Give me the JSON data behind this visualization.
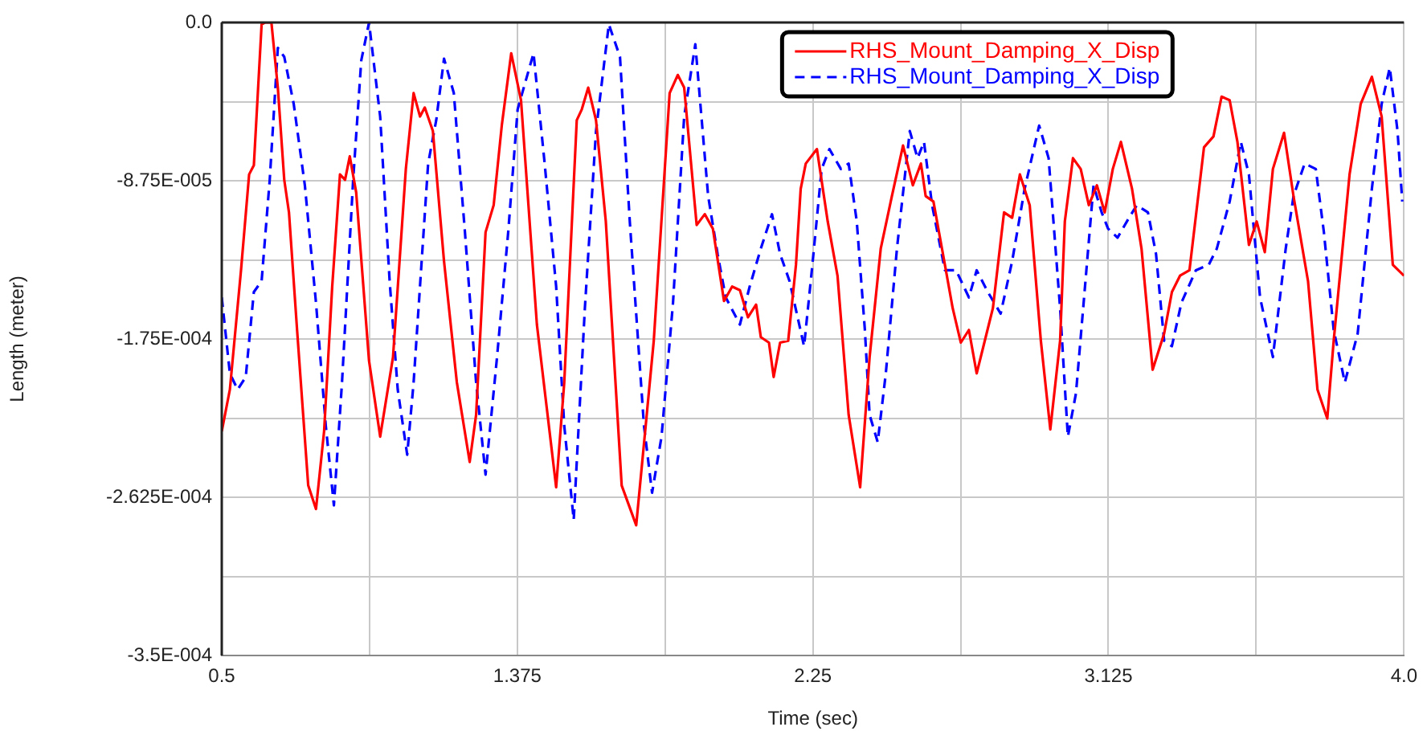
{
  "chart_data": {
    "type": "line",
    "xlabel": "Time (sec)",
    "ylabel": "Length (meter)",
    "xlim": [
      0.5,
      4.0
    ],
    "ylim": [
      -0.00035,
      0
    ],
    "xticks": [
      0.5,
      {
        "value": 0.9375,
        "label": null
      },
      1.375,
      {
        "value": 1.8125,
        "label": null
      },
      2.25,
      {
        "value": 2.6875,
        "label": null
      },
      3.125,
      {
        "value": 3.5625,
        "label": null
      },
      {
        "value": 4,
        "label": "4.0"
      }
    ],
    "yticks": [
      {
        "value": -0.00035,
        "label": "-3.5E-004"
      },
      {
        "value": -0.00030625,
        "label": null
      },
      {
        "value": -0.0002625,
        "label": "-2.625E-004"
      },
      {
        "value": -0.00021875,
        "label": null
      },
      {
        "value": -0.000175,
        "label": "-1.75E-004"
      },
      {
        "value": -0.00013125,
        "label": null
      },
      {
        "value": -8.75e-05,
        "label": "-8.75E-005"
      },
      {
        "value": -4.375e-05,
        "label": null
      },
      {
        "value": 0,
        "label": "0.0"
      }
    ],
    "grid": true,
    "legend": "top right",
    "series": [
      {
        "name": "RHS_Mount_Damping_X_Disp",
        "color": "#ff0000",
        "line_style": "solid",
        "x": [
          0.5,
          0.524,
          0.557,
          0.581,
          0.595,
          0.618,
          0.628,
          0.647,
          0.666,
          0.685,
          0.699,
          0.723,
          0.756,
          0.779,
          0.803,
          0.827,
          0.85,
          0.865,
          0.879,
          0.898,
          0.936,
          0.969,
          1.007,
          1.045,
          1.068,
          1.087,
          1.101,
          1.125,
          1.158,
          1.196,
          1.234,
          1.253,
          1.281,
          1.305,
          1.329,
          1.357,
          1.386,
          1.433,
          1.49,
          1.514,
          1.551,
          1.566,
          1.585,
          1.608,
          1.637,
          1.684,
          1.727,
          1.779,
          1.826,
          1.85,
          1.869,
          1.906,
          1.93,
          1.954,
          1.987,
          2.011,
          2.034,
          2.058,
          2.082,
          2.096,
          2.12,
          2.134,
          2.153,
          2.177,
          2.2,
          2.214,
          2.229,
          2.262,
          2.294,
          2.323,
          2.356,
          2.39,
          2.418,
          2.451,
          2.484,
          2.517,
          2.546,
          2.57,
          2.584,
          2.607,
          2.641,
          2.664,
          2.688,
          2.712,
          2.735,
          2.759,
          2.783,
          2.816,
          2.84,
          2.863,
          2.892,
          2.925,
          2.953,
          2.982,
          2.996,
          3.02,
          3.043,
          3.067,
          3.091,
          3.114,
          3.138,
          3.162,
          3.195,
          3.223,
          3.256,
          3.29,
          3.313,
          3.337,
          3.365,
          3.408,
          3.436,
          3.46,
          3.484,
          3.507,
          3.541,
          3.564,
          3.588,
          3.612,
          3.645,
          3.673,
          3.716,
          3.744,
          3.773,
          3.792,
          3.839,
          3.872,
          3.905,
          3.934,
          3.967,
          4.0
        ],
        "values": [
          -0.000226,
          -0.000203,
          -0.000137,
          -8.4e-05,
          -7.9e-05,
          -1e-06,
          0,
          0,
          -3.6e-05,
          -8.7e-05,
          -0.000105,
          -0.00017,
          -0.000256,
          -0.000269,
          -0.000226,
          -0.000146,
          -8.4e-05,
          -8.7e-05,
          -7.4e-05,
          -9.4e-05,
          -0.000187,
          -0.000229,
          -0.000185,
          -8.1e-05,
          -3.9e-05,
          -5.2e-05,
          -4.7e-05,
          -6e-05,
          -0.000132,
          -0.000199,
          -0.000243,
          -0.000217,
          -0.000116,
          -0.000101,
          -5.7e-05,
          -1.7e-05,
          -4.3e-05,
          -0.000167,
          -0.000257,
          -0.000199,
          -5.4e-05,
          -4.8e-05,
          -3.6e-05,
          -5.4e-05,
          -0.00011,
          -0.000256,
          -0.000278,
          -0.000176,
          -3.9e-05,
          -2.9e-05,
          -3.6e-05,
          -0.000112,
          -0.000106,
          -0.000114,
          -0.000154,
          -0.000146,
          -0.000148,
          -0.000163,
          -0.000156,
          -0.000174,
          -0.000177,
          -0.000196,
          -0.000177,
          -0.000176,
          -0.000134,
          -9.2e-05,
          -7.8e-05,
          -7e-05,
          -0.00011,
          -0.00014,
          -0.000217,
          -0.000257,
          -0.000185,
          -0.000125,
          -9.6e-05,
          -6.8e-05,
          -9e-05,
          -7.8e-05,
          -9.6e-05,
          -9.9e-05,
          -0.000134,
          -0.000158,
          -0.000177,
          -0.00017,
          -0.000194,
          -0.000176,
          -0.000158,
          -0.000105,
          -0.000108,
          -8.4e-05,
          -0.000101,
          -0.000176,
          -0.000225,
          -0.000176,
          -0.00011,
          -7.5e-05,
          -8.1e-05,
          -0.000101,
          -9e-05,
          -0.000105,
          -8.1e-05,
          -6.6e-05,
          -9.2e-05,
          -0.000125,
          -0.000192,
          -0.000172,
          -0.000149,
          -0.00014,
          -0.000137,
          -6.9e-05,
          -6.3e-05,
          -4.1e-05,
          -4.3e-05,
          -6.6e-05,
          -0.000123,
          -0.00011,
          -0.000127,
          -8.1e-05,
          -6.1e-05,
          -9.6e-05,
          -0.000143,
          -0.000203,
          -0.000219,
          -0.000176,
          -8.4e-05,
          -4.5e-05,
          -3e-05,
          -5.2e-05,
          -0.000134,
          -0.00014
        ]
      },
      {
        "name": "RHS_Mount_Damping_X_Disp",
        "color": "#0000ff",
        "line_style": "dashed",
        "x": [
          0.5,
          0.524,
          0.547,
          0.571,
          0.595,
          0.618,
          0.642,
          0.666,
          0.685,
          0.713,
          0.746,
          0.779,
          0.808,
          0.832,
          0.856,
          0.889,
          0.913,
          0.936,
          0.969,
          0.997,
          1.021,
          1.049,
          1.068,
          1.111,
          1.135,
          1.158,
          1.187,
          1.22,
          1.253,
          1.281,
          1.315,
          1.348,
          1.376,
          1.423,
          1.456,
          1.49,
          1.514,
          1.542,
          1.575,
          1.608,
          1.646,
          1.679,
          1.708,
          1.75,
          1.774,
          1.802,
          1.836,
          1.869,
          1.902,
          1.94,
          1.968,
          1.992,
          2.034,
          2.063,
          2.096,
          2.129,
          2.153,
          2.181,
          2.224,
          2.247,
          2.276,
          2.299,
          2.333,
          2.356,
          2.38,
          2.404,
          2.418,
          2.442,
          2.466,
          2.499,
          2.537,
          2.56,
          2.579,
          2.603,
          2.641,
          2.674,
          2.712,
          2.735,
          2.768,
          2.806,
          2.84,
          2.877,
          2.92,
          2.948,
          2.982,
          3.005,
          3.029,
          3.053,
          3.081,
          3.105,
          3.124,
          3.152,
          3.186,
          3.209,
          3.242,
          3.266,
          3.29,
          3.313,
          3.341,
          3.384,
          3.422,
          3.446,
          3.484,
          3.517,
          3.541,
          3.574,
          3.612,
          3.65,
          3.673,
          3.706,
          3.739,
          3.763,
          3.792,
          3.825,
          3.863,
          3.905,
          3.934,
          3.958,
          3.981,
          3.995
        ],
        "values": [
          -0.000152,
          -0.000194,
          -0.000203,
          -0.000196,
          -0.000149,
          -0.000143,
          -8.7e-05,
          -1.4e-05,
          -1.9e-05,
          -4.5e-05,
          -9e-05,
          -0.000155,
          -0.000223,
          -0.000267,
          -0.000199,
          -8.7e-05,
          -2.1e-05,
          0,
          -5.2e-05,
          -0.000143,
          -0.000203,
          -0.000239,
          -0.000199,
          -7.8e-05,
          -5.4e-05,
          -2e-05,
          -3.9e-05,
          -0.000116,
          -0.000199,
          -0.00025,
          -0.000185,
          -0.000116,
          -4.8e-05,
          -1.7e-05,
          -7.8e-05,
          -0.000146,
          -0.000223,
          -0.000275,
          -0.000158,
          -6e-05,
          -1e-06,
          -1.9e-05,
          -0.00011,
          -0.000223,
          -0.00026,
          -0.000229,
          -0.000155,
          -5.2e-05,
          -1.2e-05,
          -9.6e-05,
          -0.000128,
          -0.000152,
          -0.000167,
          -0.000146,
          -0.000125,
          -0.000106,
          -0.000128,
          -0.000143,
          -0.000179,
          -0.000137,
          -8.1e-05,
          -7e-05,
          -8.1e-05,
          -7.8e-05,
          -0.00011,
          -0.00017,
          -0.000217,
          -0.000232,
          -0.000194,
          -0.000125,
          -6e-05,
          -7.5e-05,
          -6.6e-05,
          -0.000101,
          -0.000137,
          -0.000137,
          -0.000152,
          -0.000137,
          -0.000149,
          -0.000161,
          -0.000132,
          -9.2e-05,
          -5.7e-05,
          -7.5e-05,
          -0.000158,
          -0.000229,
          -0.000205,
          -0.000152,
          -9e-05,
          -0.000105,
          -0.000114,
          -0.000119,
          -0.000108,
          -0.000101,
          -0.000105,
          -0.000128,
          -0.000176,
          -0.000179,
          -0.000155,
          -0.000137,
          -0.000134,
          -0.000125,
          -9.9e-05,
          -6.6e-05,
          -8.4e-05,
          -0.000152,
          -0.000185,
          -0.000125,
          -9.6e-05,
          -7.8e-05,
          -8.1e-05,
          -0.000116,
          -0.00017,
          -0.000199,
          -0.000172,
          -9.2e-05,
          -4.5e-05,
          -2.5e-05,
          -6e-05,
          -9.9e-05
        ]
      }
    ]
  }
}
